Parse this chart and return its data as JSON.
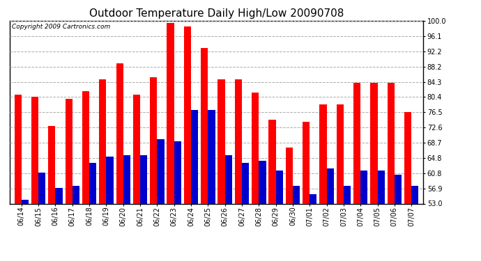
{
  "title": "Outdoor Temperature Daily High/Low 20090708",
  "copyright": "Copyright 2009 Cartronics.com",
  "dates": [
    "06/14",
    "06/15",
    "06/16",
    "06/17",
    "06/18",
    "06/19",
    "06/20",
    "06/21",
    "06/22",
    "06/23",
    "06/24",
    "06/25",
    "06/26",
    "06/27",
    "06/28",
    "06/29",
    "06/30",
    "07/01",
    "07/02",
    "07/03",
    "07/04",
    "07/05",
    "07/06",
    "07/07"
  ],
  "highs": [
    81.0,
    80.4,
    73.0,
    80.0,
    82.0,
    85.0,
    89.0,
    81.0,
    85.5,
    99.5,
    98.5,
    93.0,
    85.0,
    85.0,
    81.5,
    74.5,
    67.5,
    74.0,
    78.5,
    78.5,
    84.0,
    84.0,
    84.0,
    76.5
  ],
  "lows": [
    54.0,
    61.0,
    57.0,
    57.5,
    63.5,
    65.0,
    65.5,
    65.5,
    69.5,
    69.0,
    77.0,
    77.0,
    65.5,
    63.5,
    64.0,
    61.5,
    57.5,
    55.5,
    62.0,
    57.5,
    61.5,
    61.5,
    60.5,
    57.5
  ],
  "high_color": "#ff0000",
  "low_color": "#0000cc",
  "bg_color": "#ffffff",
  "yticks": [
    53.0,
    56.9,
    60.8,
    64.8,
    68.7,
    72.6,
    76.5,
    80.4,
    84.3,
    88.2,
    92.2,
    96.1,
    100.0
  ],
  "ymin": 53.0,
  "ymax": 100.0,
  "bar_width": 0.42,
  "grid_color": "#aaaaaa",
  "title_fontsize": 11,
  "tick_fontsize": 7,
  "copyright_fontsize": 6.5
}
